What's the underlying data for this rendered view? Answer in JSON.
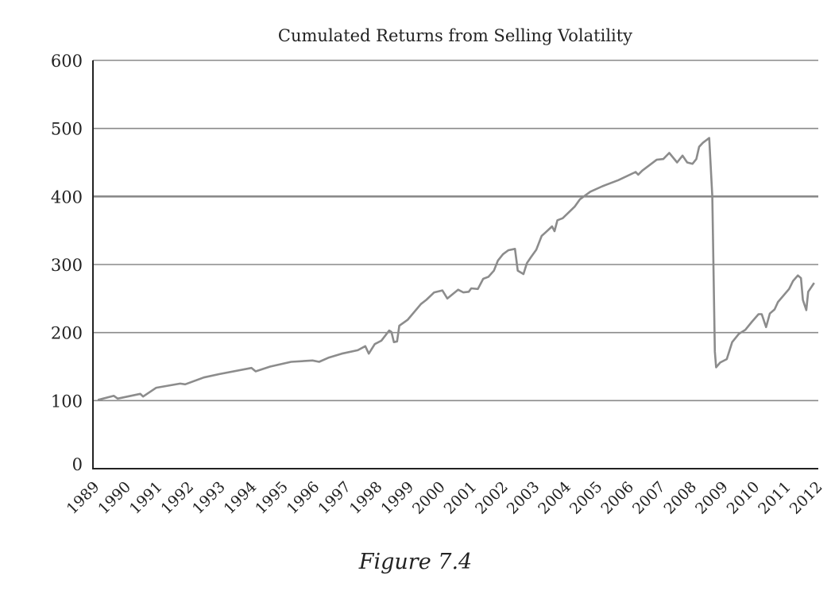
{
  "chart_data": {
    "type": "line",
    "title": "Cumulated Returns from Selling Volatility",
    "xlabel": "",
    "ylabel": "",
    "xlim": [
      1989,
      2012
    ],
    "ylim": [
      0,
      600
    ],
    "grid": true,
    "x_tick_labels": [
      "1989",
      "1990",
      "1991",
      "1992",
      "1993",
      "1994",
      "1995",
      "1996",
      "1997",
      "1998",
      "1999",
      "2000",
      "2001",
      "2002",
      "2003",
      "2004",
      "2005",
      "2006",
      "2007",
      "2008",
      "2009",
      "2010",
      "2011",
      "2012"
    ],
    "y_tick_labels": [
      "0",
      "100",
      "200",
      "300",
      "400",
      "500",
      "600"
    ],
    "y_ticks": [
      0,
      100,
      200,
      300,
      400,
      500,
      600
    ],
    "line_color": "#8c8c8c",
    "series": [
      {
        "x": [
          1989.13,
          1989.64,
          1989.76,
          1990.48,
          1990.57,
          1990.99,
          1991.75,
          1991.91,
          1992.5,
          1993.0,
          1994.02,
          1994.15,
          1994.61,
          1995.28,
          1995.96,
          1996.17,
          1996.46,
          1996.89,
          1997.4,
          1997.64,
          1997.75,
          1997.94,
          1998.15,
          1998.4,
          1998.47,
          1998.55,
          1998.65,
          1998.72,
          1998.99,
          1999.41,
          1999.58,
          1999.83,
          2000.09,
          2000.25,
          2000.59,
          2000.76,
          2000.93,
          2001.01,
          2001.22,
          2001.39,
          2001.56,
          2001.73,
          2001.86,
          2002.02,
          2002.19,
          2002.4,
          2002.49,
          2002.67,
          2002.78,
          2002.91,
          2003.08,
          2003.25,
          2003.37,
          2003.58,
          2003.66,
          2003.75,
          2003.92,
          2004.3,
          2004.47,
          2004.8,
          2005.18,
          2005.69,
          2006.24,
          2006.32,
          2006.45,
          2006.91,
          2007.12,
          2007.31,
          2007.56,
          2007.73,
          2007.88,
          2008.05,
          2008.17,
          2008.26,
          2008.38,
          2008.58,
          2008.68,
          2008.76,
          2008.8,
          2008.93,
          2009.14,
          2009.31,
          2009.52,
          2009.73,
          2009.94,
          2010.15,
          2010.25,
          2010.39,
          2010.51,
          2010.66,
          2010.77,
          2011.12,
          2011.25,
          2011.4,
          2011.5,
          2011.56,
          2011.67,
          2011.73,
          2011.92
        ],
        "values": [
          101,
          107,
          103,
          110,
          106,
          119,
          125,
          124,
          134,
          139,
          148,
          143,
          150,
          157,
          159,
          157,
          163,
          169,
          174,
          180,
          169,
          183,
          188,
          203,
          201,
          186,
          187,
          210,
          219,
          242,
          248,
          259,
          262,
          250,
          263,
          259,
          260,
          265,
          264,
          279,
          282,
          291,
          306,
          315,
          321,
          323,
          291,
          286,
          302,
          311,
          322,
          342,
          347,
          356,
          349,
          365,
          368,
          385,
          396,
          407,
          415,
          424,
          436,
          432,
          438,
          454,
          455,
          464,
          450,
          460,
          450,
          448,
          455,
          473,
          479,
          486,
          400,
          172,
          149,
          156,
          161,
          186,
          198,
          204,
          216,
          227,
          227,
          208,
          228,
          234,
          245,
          264,
          276,
          284,
          280,
          248,
          233,
          260,
          273
        ]
      }
    ]
  },
  "caption": "Figure 7.4"
}
